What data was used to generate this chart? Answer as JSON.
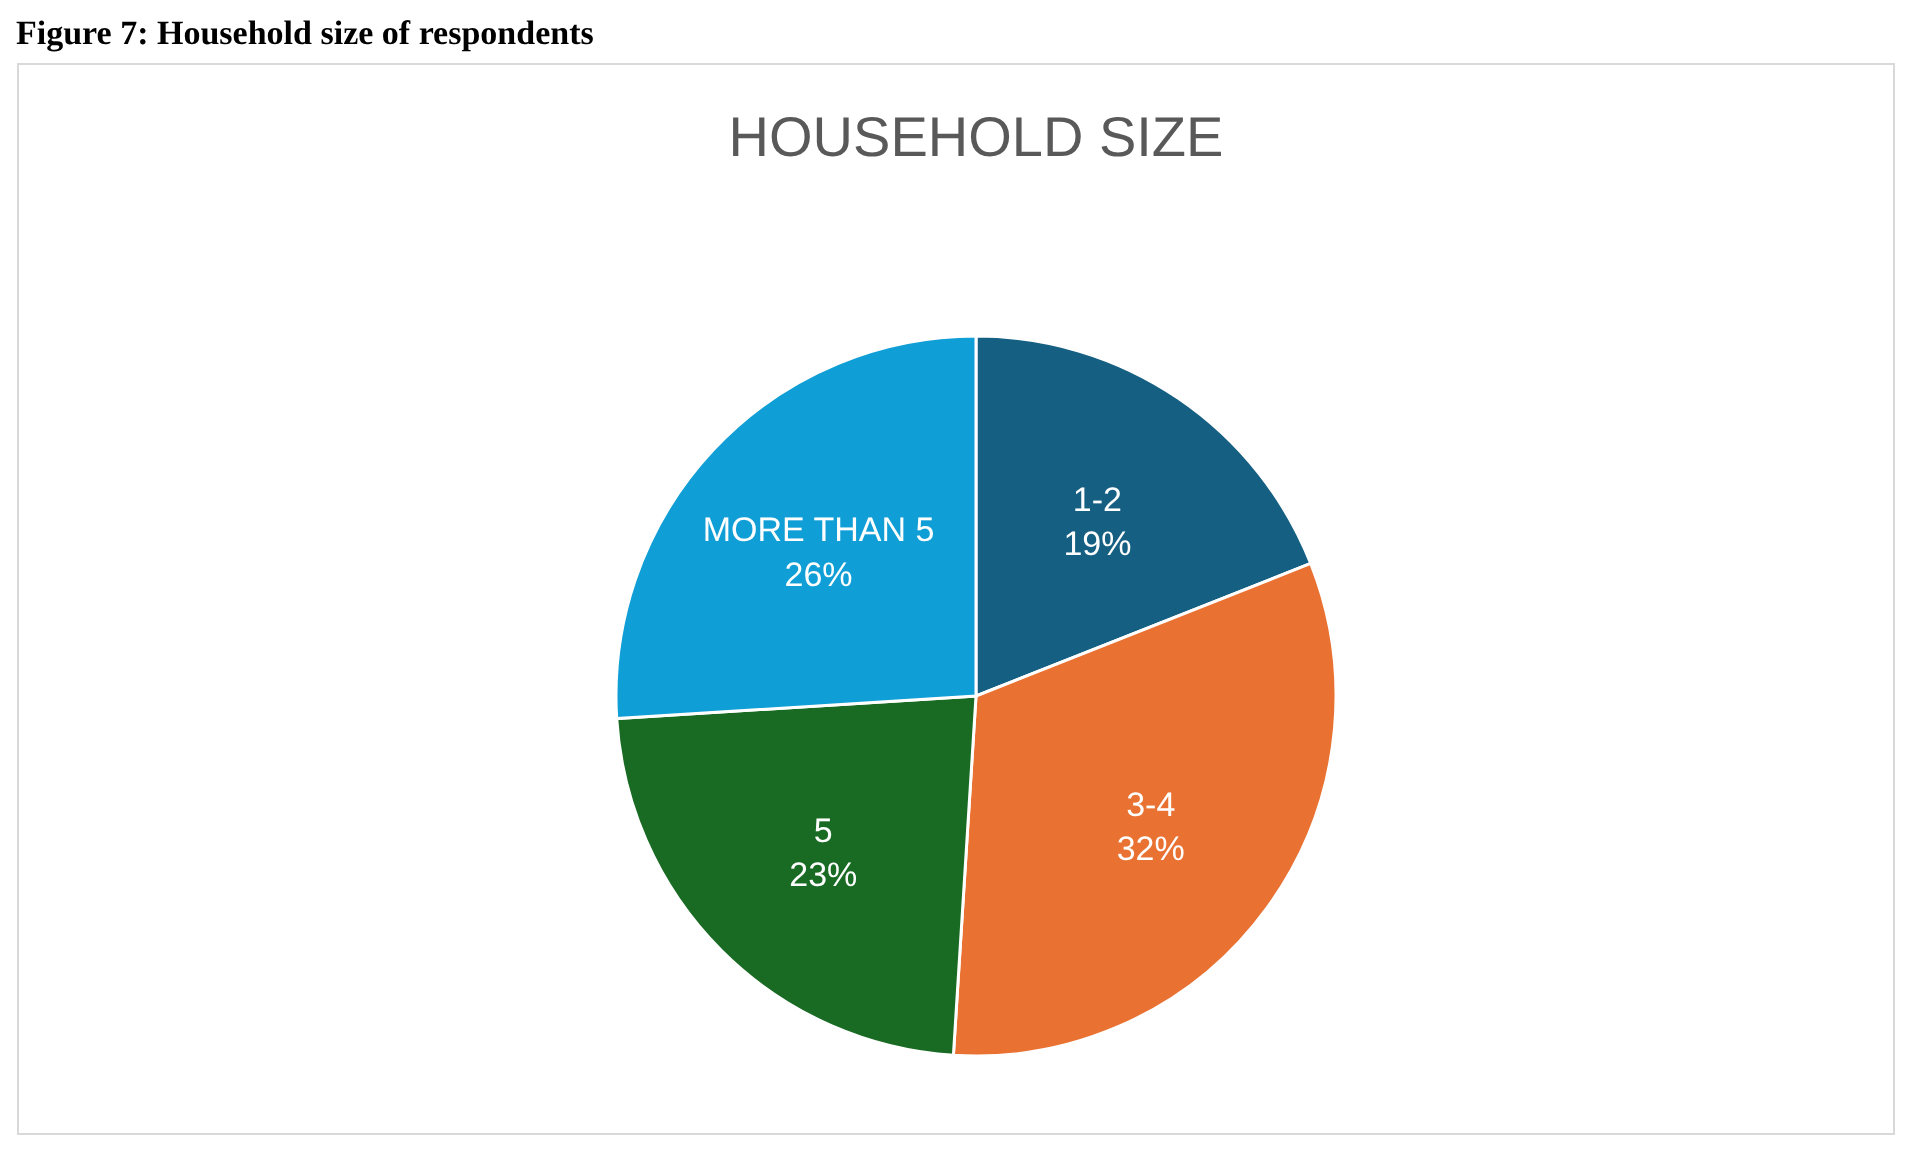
{
  "chart_data": {
    "type": "pie",
    "title": "HOUSEHOLD SIZE",
    "annotations": [
      "Figure 7: Household size of respondents"
    ],
    "categories": [
      "1-2",
      "3-4",
      "5",
      "MORE THAN 5"
    ],
    "values": [
      19,
      32,
      23,
      26
    ],
    "colors": [
      "#155f82",
      "#e97132",
      "#196b24",
      "#0f9ed5"
    ],
    "value_labels": [
      "19%",
      "32%",
      "23%",
      "26%"
    ]
  }
}
